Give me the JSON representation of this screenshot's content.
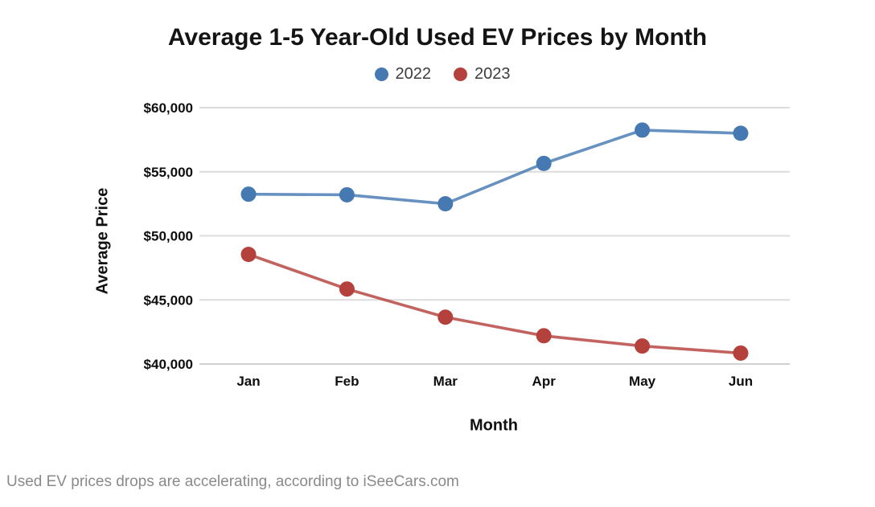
{
  "page": {
    "caption": "Used EV prices drops are accelerating, according to iSeeCars.com"
  },
  "chart_data": {
    "type": "line",
    "title": "Average 1-5 Year-Old Used EV Prices by Month",
    "xlabel": "Month",
    "ylabel": "Average Price",
    "categories": [
      "Jan",
      "Feb",
      "Mar",
      "Apr",
      "May",
      "Jun"
    ],
    "series": [
      {
        "name": "2022",
        "color": "#4679b2",
        "values": [
          53250,
          53200,
          52500,
          55650,
          58250,
          58000
        ]
      },
      {
        "name": "2023",
        "color": "#b5413d",
        "values": [
          48550,
          45850,
          43650,
          42200,
          41400,
          40850
        ]
      }
    ],
    "ylim": [
      40000,
      60000
    ],
    "ytick_step": 5000,
    "ytick_labels": [
      "$40,000",
      "$45,000",
      "$50,000",
      "$55,000",
      "$60,000"
    ],
    "grid": true,
    "legend_position": "top",
    "marker": "circle"
  }
}
